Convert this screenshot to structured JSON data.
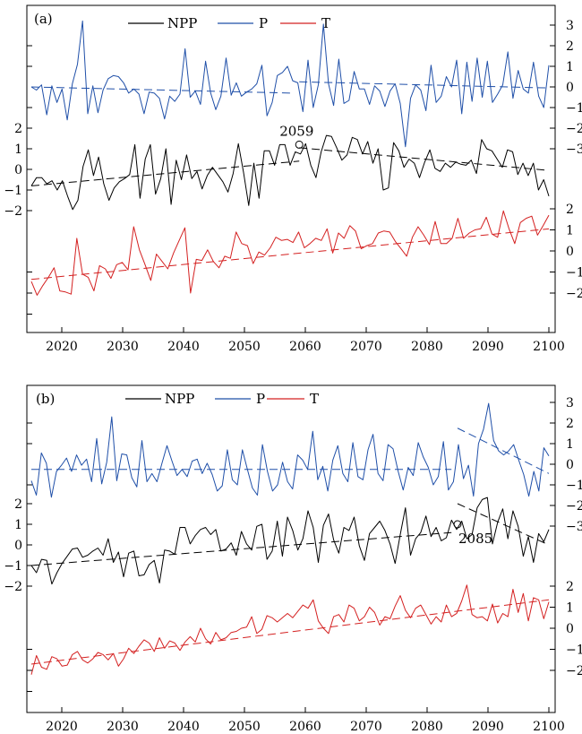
{
  "chart_data": [
    {
      "type": "line",
      "panel_label": "(a)",
      "x_ticks": [
        2020,
        2030,
        2040,
        2050,
        2060,
        2070,
        2080,
        2090,
        2100
      ],
      "xlim": [
        2015,
        2100
      ],
      "legend": [
        {
          "name": "NPP",
          "color": "#000000"
        },
        {
          "name": "P",
          "color": "#1f4fa8"
        },
        {
          "name": "T",
          "color": "#d42020"
        }
      ],
      "right_ticks": {
        "P": [
          "3",
          "2",
          "1",
          "0",
          "−1",
          "−2",
          "−3"
        ],
        "T": [
          "2",
          "1",
          "0",
          "−1",
          "−2"
        ]
      },
      "left_ticks": {
        "NPP": [
          "2",
          "1",
          "0",
          "−1",
          "−2"
        ]
      },
      "change_point": {
        "year": 2059,
        "label": "2059",
        "series": "NPP",
        "value": 1.2
      },
      "series": [
        {
          "name": "P",
          "color": "#1f4fa8",
          "values": [
            0.0,
            -0.15,
            0.1,
            -1.35,
            0.05,
            -0.75,
            -0.1,
            -1.6,
            0.15,
            1.1,
            3.2,
            -1.3,
            0.05,
            -1.25,
            -0.15,
            0.4,
            0.55,
            0.5,
            0.2,
            -0.3,
            -0.1,
            -0.35,
            -1.3,
            -0.25,
            -0.3,
            -0.55,
            -1.55,
            -0.45,
            -0.7,
            -0.35,
            1.85,
            -0.5,
            -0.2,
            -0.85,
            1.25,
            -0.3,
            -1.1,
            -0.45,
            1.4,
            -0.4,
            0.2,
            -0.45,
            -0.25,
            -0.1,
            0.15,
            1.05,
            -1.4,
            -0.75,
            0.55,
            0.7,
            1.0,
            0.3,
            0.2,
            -1.2,
            1.3,
            -1.0,
            0.1,
            3.05,
            0.15,
            -0.9,
            1.35,
            -0.8,
            -0.65,
            0.75,
            -0.1,
            -0.1,
            -0.85,
            0.05,
            -0.2,
            -0.95,
            -0.2,
            0.15,
            -0.8,
            -2.9,
            -0.55,
            0.1,
            -0.15,
            -1.15,
            1.05,
            -0.75,
            -0.45,
            0.5,
            0.0,
            1.3,
            -1.3,
            1.2,
            -0.7,
            1.4,
            -0.5,
            1.25,
            -0.75,
            -0.35,
            0.1,
            1.7,
            -0.55,
            0.8,
            -0.1,
            -0.3,
            1.2,
            -0.45,
            -1.0,
            1.05
          ],
          "trend_segments": [
            {
              "from": [
                2015,
                0.0
              ],
              "to": [
                2058,
                -0.3
              ]
            },
            {
              "from": [
                2059,
                0.25
              ],
              "to": [
                2100,
                -0.05
              ]
            }
          ]
        },
        {
          "name": "NPP",
          "color": "#000000",
          "values": [
            -0.8,
            -0.4,
            -0.4,
            -0.7,
            -0.55,
            -1.0,
            -0.55,
            -1.3,
            -1.95,
            -1.5,
            0.15,
            0.95,
            -0.3,
            0.6,
            -0.7,
            -1.5,
            -0.9,
            -0.6,
            -0.45,
            -0.25,
            1.2,
            -1.4,
            0.5,
            1.2,
            -1.2,
            -0.45,
            1.0,
            -1.7,
            0.45,
            -0.5,
            0.7,
            -0.45,
            -0.1,
            -0.95,
            -0.3,
            0.1,
            -0.25,
            -0.6,
            -1.1,
            -0.2,
            1.25,
            -0.15,
            -1.75,
            0.3,
            -1.4,
            0.9,
            0.9,
            0.2,
            1.2,
            1.2,
            0.2,
            0.85,
            0.75,
            1.25,
            0.2,
            -0.4,
            0.85,
            1.65,
            1.6,
            1.05,
            0.45,
            0.7,
            1.55,
            1.45,
            0.75,
            1.35,
            0.3,
            1.0,
            -1.0,
            -0.9,
            1.3,
            0.9,
            0.1,
            0.5,
            0.3,
            -0.4,
            0.35,
            0.95,
            0.05,
            -0.1,
            0.3,
            0.1,
            0.35,
            0.25,
            0.2,
            0.45,
            -0.2,
            1.45,
            1.0,
            0.9,
            0.5,
            0.1,
            0.95,
            0.85,
            -0.25,
            0.3,
            -0.3,
            0.3,
            -1.0,
            -0.5,
            -1.3
          ],
          "trend_segments": [
            {
              "from": [
                2015,
                -0.8
              ],
              "to": [
                2059,
                0.4
              ]
            },
            {
              "from": [
                2059,
                1.05
              ],
              "to": [
                2100,
                -0.05
              ]
            }
          ]
        },
        {
          "name": "T",
          "color": "#d42020",
          "values": [
            -1.45,
            -2.1,
            -1.65,
            -1.25,
            -0.8,
            -1.9,
            -1.95,
            -2.05,
            0.6,
            -1.1,
            -1.25,
            -1.9,
            -0.7,
            -0.85,
            -1.3,
            -0.65,
            -0.55,
            -0.9,
            1.15,
            0.05,
            -0.65,
            -1.4,
            -0.15,
            -0.5,
            -0.85,
            -0.1,
            0.5,
            1.1,
            -2.0,
            -0.4,
            -0.45,
            0.05,
            -0.5,
            -0.8,
            -0.25,
            -0.35,
            0.9,
            0.35,
            0.25,
            -0.6,
            -0.05,
            -0.2,
            0.15,
            0.65,
            0.5,
            0.55,
            0.4,
            0.9,
            0.15,
            0.35,
            0.6,
            0.5,
            1.05,
            -0.1,
            0.85,
            0.6,
            1.2,
            0.95,
            0.1,
            0.25,
            0.35,
            0.85,
            0.95,
            0.9,
            0.45,
            0.1,
            -0.25,
            0.65,
            1.15,
            0.75,
            0.3,
            1.4,
            0.35,
            0.35,
            0.6,
            1.55,
            0.6,
            0.85,
            1.0,
            1.05,
            1.6,
            0.8,
            0.65,
            1.9,
            1.05,
            0.35,
            1.35,
            1.55,
            1.65,
            0.75,
            1.2,
            1.7
          ],
          "trend_segments": [
            {
              "from": [
                2015,
                -1.35
              ],
              "to": [
                2100,
                1.05
              ]
            }
          ]
        }
      ]
    },
    {
      "type": "line",
      "panel_label": "(b)",
      "x_ticks": [
        2020,
        2030,
        2040,
        2050,
        2060,
        2070,
        2080,
        2090,
        2100
      ],
      "xlim": [
        2015,
        2100
      ],
      "legend": [
        {
          "name": "NPP",
          "color": "#000000"
        },
        {
          "name": "P",
          "color": "#1f4fa8"
        },
        {
          "name": "T",
          "color": "#d42020"
        }
      ],
      "right_ticks": {
        "P": [
          "3",
          "2",
          "1",
          "0",
          "−1",
          "−2",
          "−3"
        ],
        "T": [
          "2",
          "1",
          "0",
          "−1",
          "−2"
        ]
      },
      "left_ticks": {
        "NPP": [
          "2",
          "1",
          "0",
          "−1",
          "−2"
        ]
      },
      "change_point": {
        "year": 2085,
        "label": "2085",
        "series": "NPP",
        "value": 1.0
      },
      "series": [
        {
          "name": "P",
          "color": "#1f4fa8",
          "values": [
            -0.8,
            -1.5,
            0.55,
            0.05,
            -1.6,
            -0.35,
            -0.05,
            0.3,
            -0.35,
            0.45,
            -0.05,
            0.25,
            -0.85,
            1.25,
            -0.95,
            0.1,
            2.3,
            -0.8,
            0.5,
            0.45,
            -0.65,
            -1.1,
            1.15,
            -0.85,
            -0.45,
            -0.85,
            0.05,
            0.9,
            0.15,
            -0.55,
            -0.25,
            -0.6,
            0.15,
            0.25,
            -0.45,
            0.05,
            -0.5,
            -1.3,
            -1.05,
            0.7,
            -0.75,
            -1.0,
            0.7,
            -0.25,
            -1.15,
            -1.5,
            0.95,
            -0.35,
            -1.3,
            -1.0,
            0.1,
            -0.85,
            -1.2,
            0.45,
            0.2,
            -0.25,
            1.6,
            -0.75,
            -0.1,
            -1.3,
            0.2,
            0.9,
            -0.45,
            -0.85,
            1.05,
            -0.6,
            -0.75,
            0.7,
            1.45,
            -0.45,
            -0.8,
            0.95,
            0.75,
            -0.35,
            -1.25,
            -0.15,
            -0.55,
            1.05,
            0.35,
            -0.15,
            -1.0,
            -0.6,
            1.1,
            -1.25,
            -0.85,
            0.95,
            -0.7,
            -0.05,
            -1.55,
            1.0,
            1.7,
            2.95,
            1.15,
            0.65,
            0.45,
            0.65,
            0.95,
            0.2,
            -0.5,
            -1.55,
            -0.35,
            -1.3,
            0.8,
            0.4
          ],
          "trend_segments": [
            {
              "from": [
                2015,
                -0.25
              ],
              "to": [
                2084,
                -0.25
              ]
            },
            {
              "from": [
                2085,
                1.75
              ],
              "to": [
                2100,
                -0.45
              ]
            }
          ]
        },
        {
          "name": "NPP",
          "color": "#000000",
          "values": [
            -1.0,
            -1.35,
            -0.7,
            -0.75,
            -1.9,
            -1.35,
            -0.9,
            -0.55,
            -0.2,
            -0.15,
            -0.6,
            -0.5,
            -0.3,
            -0.15,
            -0.5,
            0.3,
            -0.85,
            -0.35,
            -1.55,
            -0.4,
            -0.3,
            -1.5,
            -1.45,
            -0.95,
            -0.75,
            -1.85,
            -0.25,
            -0.3,
            -0.45,
            0.85,
            0.85,
            0.05,
            0.45,
            0.75,
            0.85,
            0.5,
            0.75,
            -0.3,
            -0.2,
            0.1,
            -0.5,
            0.65,
            0.05,
            -0.25,
            0.9,
            1.0,
            -0.7,
            -0.3,
            1.15,
            -0.55,
            1.35,
            0.7,
            -0.25,
            0.3,
            1.65,
            0.85,
            -0.85,
            0.95,
            1.5,
            0.25,
            -0.4,
            0.85,
            0.7,
            1.35,
            -0.05,
            -0.75,
            0.55,
            0.85,
            1.15,
            0.7,
            0.05,
            -0.9,
            0.5,
            1.8,
            -0.5,
            0.3,
            0.6,
            1.4,
            0.4,
            0.85,
            0.2,
            0.35,
            1.2,
            0.75,
            1.15,
            0.3,
            0.5,
            1.8,
            2.2,
            2.3,
            0.05,
            1.1,
            1.75,
            0.3,
            1.65,
            0.9,
            -0.55,
            0.4,
            -0.85,
            0.55,
            0.15,
            0.75
          ],
          "trend_segments": [
            {
              "from": [
                2015,
                -1.0
              ],
              "to": [
                2084,
                0.6
              ]
            },
            {
              "from": [
                2085,
                2.0
              ],
              "to": [
                2100,
                0.0
              ]
            }
          ]
        },
        {
          "name": "T",
          "color": "#d42020",
          "values": [
            -2.2,
            -1.3,
            -1.85,
            -1.95,
            -1.35,
            -1.45,
            -1.8,
            -1.75,
            -1.25,
            -1.1,
            -1.5,
            -1.65,
            -1.45,
            -1.15,
            -1.25,
            -1.5,
            -1.2,
            -1.8,
            -1.45,
            -0.95,
            -1.2,
            -0.85,
            -0.55,
            -0.7,
            -1.1,
            -0.45,
            -0.95,
            -0.6,
            -0.7,
            -1.05,
            -0.65,
            -0.4,
            -0.65,
            0.0,
            -0.5,
            -0.75,
            -0.2,
            -0.55,
            -0.45,
            -0.2,
            -0.15,
            0.0,
            0.05,
            0.55,
            -0.25,
            -0.05,
            0.6,
            0.5,
            0.3,
            0.5,
            0.7,
            0.5,
            0.8,
            1.1,
            0.95,
            1.35,
            0.35,
            0.0,
            -0.25,
            0.55,
            0.65,
            0.3,
            1.1,
            0.95,
            0.35,
            0.55,
            1.0,
            0.75,
            0.15,
            0.55,
            0.45,
            1.05,
            1.55,
            0.85,
            0.5,
            0.95,
            1.1,
            0.65,
            0.2,
            0.55,
            0.3,
            1.1,
            0.55,
            0.7,
            1.3,
            2.05,
            0.65,
            0.5,
            0.55,
            0.35,
            1.15,
            0.25,
            0.7,
            0.55,
            1.85,
            0.75,
            1.65,
            0.35,
            1.45,
            1.35,
            0.45,
            1.25
          ],
          "trend_segments": [
            {
              "from": [
                2015,
                -1.7
              ],
              "to": [
                2100,
                1.35
              ]
            }
          ]
        }
      ]
    }
  ]
}
